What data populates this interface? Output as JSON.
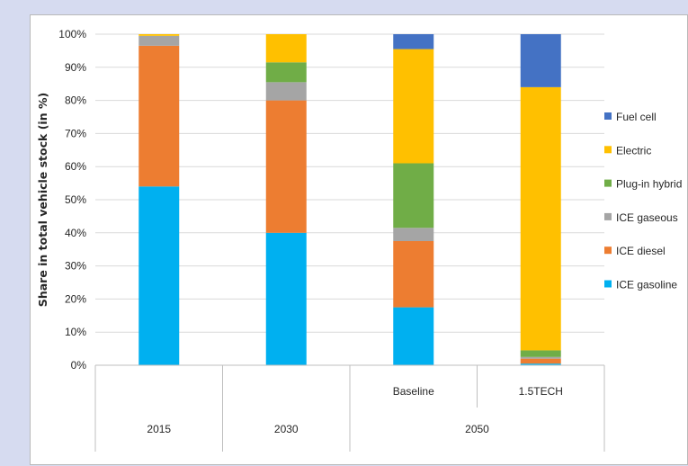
{
  "chart_data": {
    "type": "bar",
    "stacked": true,
    "ylabel": "Share in total vehicle stock (in %)",
    "xlabel": "",
    "ylim": [
      0,
      100
    ],
    "yticks": [
      "0%",
      "10%",
      "20%",
      "30%",
      "40%",
      "50%",
      "60%",
      "70%",
      "80%",
      "90%",
      "100%"
    ],
    "bars": [
      {
        "sub": "",
        "group": "2015"
      },
      {
        "sub": "",
        "group": "2030"
      },
      {
        "sub": "Baseline",
        "group": "2050"
      },
      {
        "sub": "1.5TECH",
        "group": "2050"
      }
    ],
    "groups": [
      {
        "label": "2015",
        "span": 1
      },
      {
        "label": "2030",
        "span": 1
      },
      {
        "label": "2050",
        "span": 2
      }
    ],
    "series": [
      {
        "name": "ICE gasoline",
        "color": "#00b0f0",
        "values": [
          54,
          40,
          17.5,
          0.5
        ]
      },
      {
        "name": "ICE diesel",
        "color": "#ed7d31",
        "values": [
          42.5,
          40,
          20,
          1.5
        ]
      },
      {
        "name": "ICE gaseous",
        "color": "#a5a5a5",
        "values": [
          3,
          5.5,
          4,
          0.5
        ]
      },
      {
        "name": "Plug-in hybrid",
        "color": "#70ad47",
        "values": [
          0,
          6,
          19.5,
          2
        ]
      },
      {
        "name": "Electric",
        "color": "#ffc000",
        "values": [
          0.5,
          8.5,
          34.5,
          79.5
        ]
      },
      {
        "name": "Fuel cell",
        "color": "#4472c4",
        "values": [
          0,
          0,
          4.5,
          16
        ]
      }
    ],
    "legend": {
      "position": "right",
      "items": [
        "Fuel cell",
        "Electric",
        "Plug-in hybrid",
        "ICE gaseous",
        "ICE diesel",
        "ICE gasoline"
      ]
    },
    "grid": true
  }
}
